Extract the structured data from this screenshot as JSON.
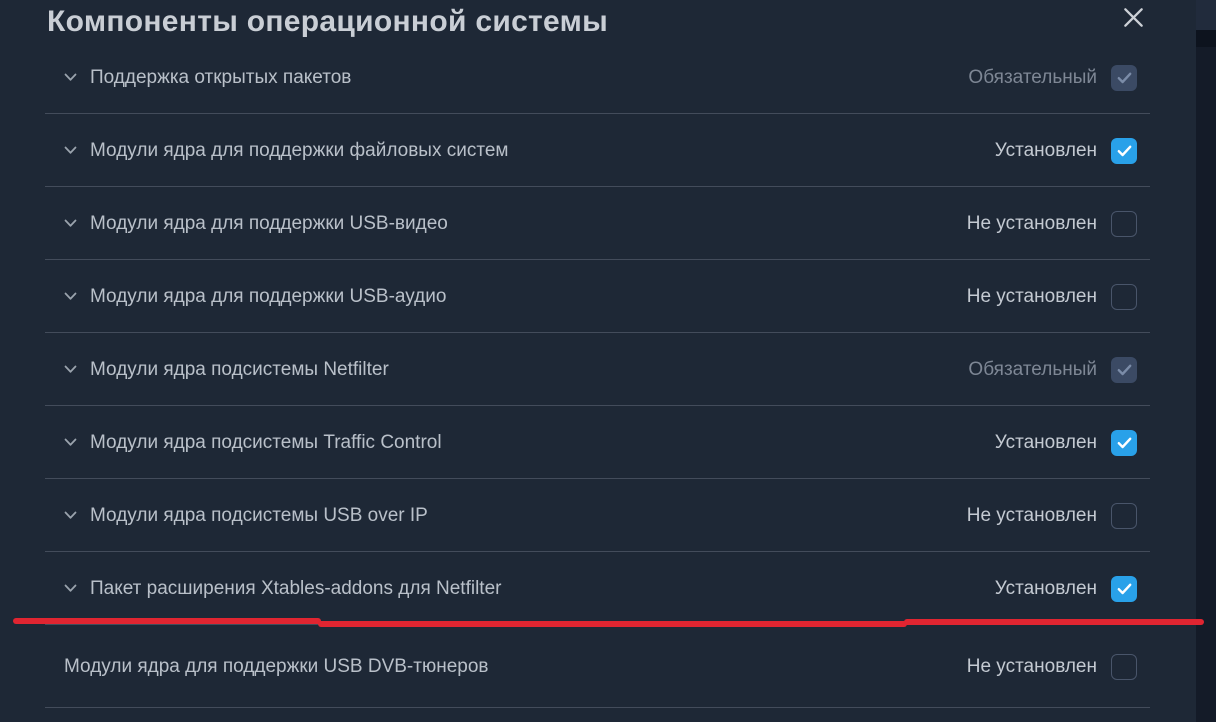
{
  "modal": {
    "title": "Компоненты операционной системы"
  },
  "icons": {
    "close": "x-cross",
    "row_expander": "chevron-down",
    "checkbox_check": "checkmark"
  },
  "colors": {
    "background": "#1e2836",
    "accent_checkbox_blue": "#29a1e9",
    "disabled_checkbox": "#3b4a64",
    "annotation_red": "#e02531",
    "divider": "#434c5b"
  },
  "annotation": {
    "type": "red-underline",
    "color": "#e02531",
    "target": "Пакет расширения Xtables-addons для Netfilter"
  },
  "components": [
    {
      "label": "Поддержка открытых пакетов",
      "status": "Обязательный",
      "state": "mandatory",
      "expandable": true
    },
    {
      "label": "Модули ядра для поддержки файловых систем",
      "status": "Установлен",
      "state": "installed",
      "expandable": true
    },
    {
      "label": "Модули ядра для поддержки USB-видео",
      "status": "Не установлен",
      "state": "not_installed",
      "expandable": true
    },
    {
      "label": "Модули ядра для поддержки USB-аудио",
      "status": "Не установлен",
      "state": "not_installed",
      "expandable": true
    },
    {
      "label": "Модули ядра подсистемы Netfilter",
      "status": "Обязательный",
      "state": "mandatory",
      "expandable": true
    },
    {
      "label": "Модули ядра подсистемы Traffic Control",
      "status": "Установлен",
      "state": "installed",
      "expandable": true
    },
    {
      "label": "Модули ядра подсистемы USB over IP",
      "status": "Не установлен",
      "state": "not_installed",
      "expandable": true
    },
    {
      "label": "Пакет расширения Xtables-addons для Netfilter",
      "status": "Установлен",
      "state": "installed",
      "expandable": true,
      "annotated": true
    },
    {
      "label": "Модули ядра для поддержки USB DVB-тюнеров",
      "status": "Не установлен",
      "state": "not_installed",
      "expandable": false
    }
  ]
}
